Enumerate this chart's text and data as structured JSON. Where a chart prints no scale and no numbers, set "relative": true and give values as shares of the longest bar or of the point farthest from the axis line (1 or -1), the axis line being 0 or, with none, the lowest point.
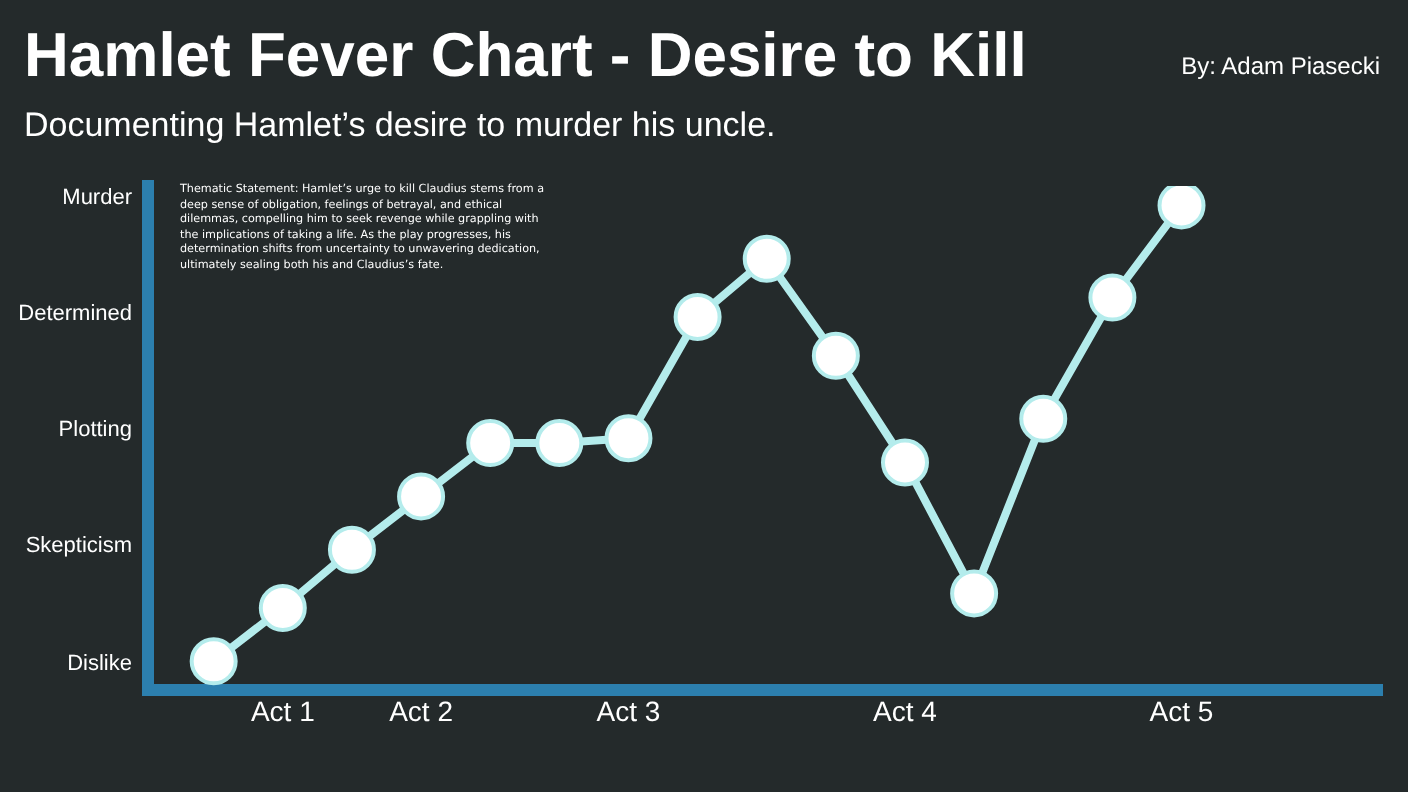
{
  "chart_data": {
    "type": "line",
    "title": "Hamlet Fever Chart - Desire to Kill",
    "subtitle": "Documenting Hamlet’s desire to murder his uncle.",
    "relative": true,
    "annotations": [
      "By: Adam Piasecki",
      "Thematic Statement: Hamlet’s urge to kill Claudius stems from a deep sense of obligation, feelings of betrayal, and ethical dilemmas, compelling him to seek revenge while grappling with the implications of taking a life. As the play progresses, his determination shifts from uncertainty to unwavering dedication, ultimately sealing both his and Claudius’s fate.",
      "Dislike",
      "Skepticism",
      "Plotting",
      "Determined",
      "Murder"
    ],
    "categories": [
      null,
      "Act 1",
      null,
      "Act 2",
      null,
      null,
      "Act 3",
      null,
      null,
      null,
      "Act 4",
      null,
      null,
      null,
      "Act 5"
    ],
    "series": [
      {
        "color": "#b4ecec",
        "values": [
          0.06,
          0.17,
          0.29,
          0.4,
          0.51,
          0.51,
          0.52,
          0.77,
          0.89,
          0.69,
          0.47,
          0.2,
          0.56,
          0.81,
          1
        ]
      }
    ],
    "grid": false,
    "marker": "circle",
    "line_style": "solid"
  }
}
